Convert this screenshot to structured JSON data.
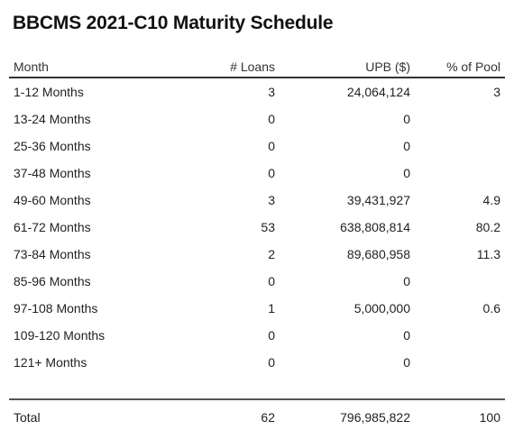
{
  "title": "BBCMS 2021-C10 Maturity Schedule",
  "columns": {
    "month": "Month",
    "loans": "# Loans",
    "upb": "UPB ($)",
    "pool": "% of Pool"
  },
  "rows": [
    {
      "month": "1-12 Months",
      "loans": "3",
      "upb": "24,064,124",
      "pool": "3"
    },
    {
      "month": "13-24 Months",
      "loans": "0",
      "upb": "0",
      "pool": ""
    },
    {
      "month": "25-36 Months",
      "loans": "0",
      "upb": "0",
      "pool": ""
    },
    {
      "month": "37-48 Months",
      "loans": "0",
      "upb": "0",
      "pool": ""
    },
    {
      "month": "49-60 Months",
      "loans": "3",
      "upb": "39,431,927",
      "pool": "4.9"
    },
    {
      "month": "61-72 Months",
      "loans": "53",
      "upb": "638,808,814",
      "pool": "80.2"
    },
    {
      "month": "73-84 Months",
      "loans": "2",
      "upb": "89,680,958",
      "pool": "11.3"
    },
    {
      "month": "85-96 Months",
      "loans": "0",
      "upb": "0",
      "pool": ""
    },
    {
      "month": "97-108 Months",
      "loans": "1",
      "upb": "5,000,000",
      "pool": "0.6"
    },
    {
      "month": "109-120 Months",
      "loans": "0",
      "upb": "0",
      "pool": ""
    },
    {
      "month": "121+ Months",
      "loans": "0",
      "upb": "0",
      "pool": ""
    }
  ],
  "total": {
    "label": "Total",
    "loans": "62",
    "upb": "796,985,822",
    "pool": "100"
  }
}
